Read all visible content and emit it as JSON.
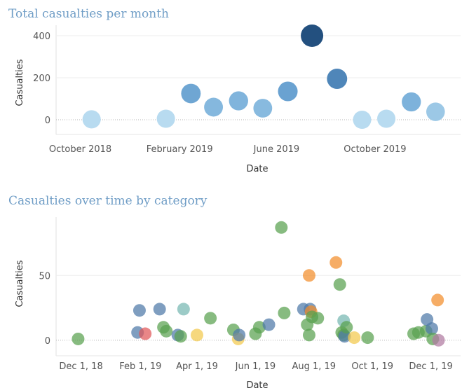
{
  "chart_data": [
    {
      "type": "scatter",
      "title": "Total casualties per month",
      "xlabel": "Date",
      "ylabel": "Casualties",
      "x_ticks": [
        "October 2018",
        "February 2019",
        "June 2019",
        "October 2019"
      ],
      "y_ticks": [
        0,
        200,
        400
      ],
      "ylim": [
        -70,
        450
      ],
      "xlim": [
        "2018-09-01",
        "2020-01-15"
      ],
      "grid": true,
      "points": [
        {
          "x": "2018-10",
          "y": 2,
          "color": "#b8dbf0"
        },
        {
          "x": "2019-01",
          "y": 5,
          "color": "#b8dbf0"
        },
        {
          "x": "2019-02",
          "y": 125,
          "color": "#6fa6d3"
        },
        {
          "x": "2019-03",
          "y": 60,
          "color": "#85b8de"
        },
        {
          "x": "2019-04",
          "y": 90,
          "color": "#80b4dc"
        },
        {
          "x": "2019-05",
          "y": 55,
          "color": "#88badf"
        },
        {
          "x": "2019-06",
          "y": 135,
          "color": "#6aa2d1"
        },
        {
          "x": "2019-07",
          "y": 400,
          "color": "#23507f"
        },
        {
          "x": "2019-08",
          "y": 195,
          "color": "#4f86b9"
        },
        {
          "x": "2019-09",
          "y": 0,
          "color": "#b8dbf0"
        },
        {
          "x": "2019-10",
          "y": 5,
          "color": "#b8dbf0"
        },
        {
          "x": "2019-11",
          "y": 85,
          "color": "#7db2db"
        },
        {
          "x": "2019-12",
          "y": 38,
          "color": "#9cc8e6"
        }
      ]
    },
    {
      "type": "scatter",
      "title": "Casualties over time by category",
      "xlabel": "Date",
      "ylabel": "Casualties",
      "x_ticks": [
        "Dec 1, 18",
        "Feb 1, 19",
        "Apr 1, 19",
        "Jun 1, 19",
        "Aug 1, 19",
        "Oct 1, 19",
        "Dec 1, 19"
      ],
      "y_ticks": [
        0,
        50
      ],
      "ylim": [
        -12,
        95
      ],
      "xlim": [
        "2018-11-05",
        "2020-01-01"
      ],
      "grid": true,
      "points": [
        {
          "x": "2018-11-28",
          "y": 1,
          "color": "#59a14f"
        },
        {
          "x": "2019-01-29",
          "y": 6,
          "color": "#4e79a7"
        },
        {
          "x": "2019-01-31",
          "y": 23,
          "color": "#4e79a7"
        },
        {
          "x": "2019-02-06",
          "y": 5,
          "color": "#e15759"
        },
        {
          "x": "2019-02-21",
          "y": 24,
          "color": "#4e79a7"
        },
        {
          "x": "2019-02-25",
          "y": 10,
          "color": "#59a14f"
        },
        {
          "x": "2019-02-28",
          "y": 7,
          "color": "#59a14f"
        },
        {
          "x": "2019-03-12",
          "y": 4,
          "color": "#4e79a7"
        },
        {
          "x": "2019-03-15",
          "y": 3,
          "color": "#59a14f"
        },
        {
          "x": "2019-03-18",
          "y": 24,
          "color": "#76b7b2"
        },
        {
          "x": "2019-04-01",
          "y": 4,
          "color": "#f2c94c"
        },
        {
          "x": "2019-04-15",
          "y": 17,
          "color": "#59a14f"
        },
        {
          "x": "2019-05-09",
          "y": 8,
          "color": "#59a14f"
        },
        {
          "x": "2019-05-14",
          "y": 1,
          "color": "#f2c94c"
        },
        {
          "x": "2019-05-15",
          "y": 4,
          "color": "#4e79a7"
        },
        {
          "x": "2019-06-01",
          "y": 5,
          "color": "#59a14f"
        },
        {
          "x": "2019-06-05",
          "y": 10,
          "color": "#59a14f"
        },
        {
          "x": "2019-06-15",
          "y": 12,
          "color": "#4e79a7"
        },
        {
          "x": "2019-06-28",
          "y": 87,
          "color": "#59a14f"
        },
        {
          "x": "2019-07-01",
          "y": 21,
          "color": "#59a14f"
        },
        {
          "x": "2019-07-21",
          "y": 24,
          "color": "#4e79a7"
        },
        {
          "x": "2019-07-25",
          "y": 12,
          "color": "#59a14f"
        },
        {
          "x": "2019-07-27",
          "y": 50,
          "color": "#f28e2b"
        },
        {
          "x": "2019-07-27",
          "y": 4,
          "color": "#59a14f"
        },
        {
          "x": "2019-07-28",
          "y": 24,
          "color": "#4e79a7"
        },
        {
          "x": "2019-07-29",
          "y": 22,
          "color": "#f28e2b"
        },
        {
          "x": "2019-07-30",
          "y": 18,
          "color": "#59a14f"
        },
        {
          "x": "2019-08-05",
          "y": 17,
          "color": "#59a14f"
        },
        {
          "x": "2019-08-24",
          "y": 60,
          "color": "#f28e2b"
        },
        {
          "x": "2019-08-28",
          "y": 43,
          "color": "#59a14f"
        },
        {
          "x": "2019-08-30",
          "y": 6,
          "color": "#59a14f"
        },
        {
          "x": "2019-09-01",
          "y": 15,
          "color": "#76b7b2"
        },
        {
          "x": "2019-09-01",
          "y": 4,
          "color": "#59a14f"
        },
        {
          "x": "2019-09-02",
          "y": 3,
          "color": "#4e79a7"
        },
        {
          "x": "2019-09-04",
          "y": 10,
          "color": "#59a14f"
        },
        {
          "x": "2019-09-12",
          "y": 2,
          "color": "#f2c94c"
        },
        {
          "x": "2019-09-26",
          "y": 2,
          "color": "#59a14f"
        },
        {
          "x": "2019-11-13",
          "y": 5,
          "color": "#59a14f"
        },
        {
          "x": "2019-11-18",
          "y": 6,
          "color": "#59a14f"
        },
        {
          "x": "2019-11-26",
          "y": 7,
          "color": "#59a14f"
        },
        {
          "x": "2019-11-27",
          "y": 16,
          "color": "#4e79a7"
        },
        {
          "x": "2019-12-02",
          "y": 9,
          "color": "#4e79a7"
        },
        {
          "x": "2019-12-03",
          "y": 1,
          "color": "#59a14f"
        },
        {
          "x": "2019-12-08",
          "y": 31,
          "color": "#f28e2b"
        },
        {
          "x": "2019-12-09",
          "y": 0,
          "color": "#b07aa1"
        }
      ]
    }
  ]
}
